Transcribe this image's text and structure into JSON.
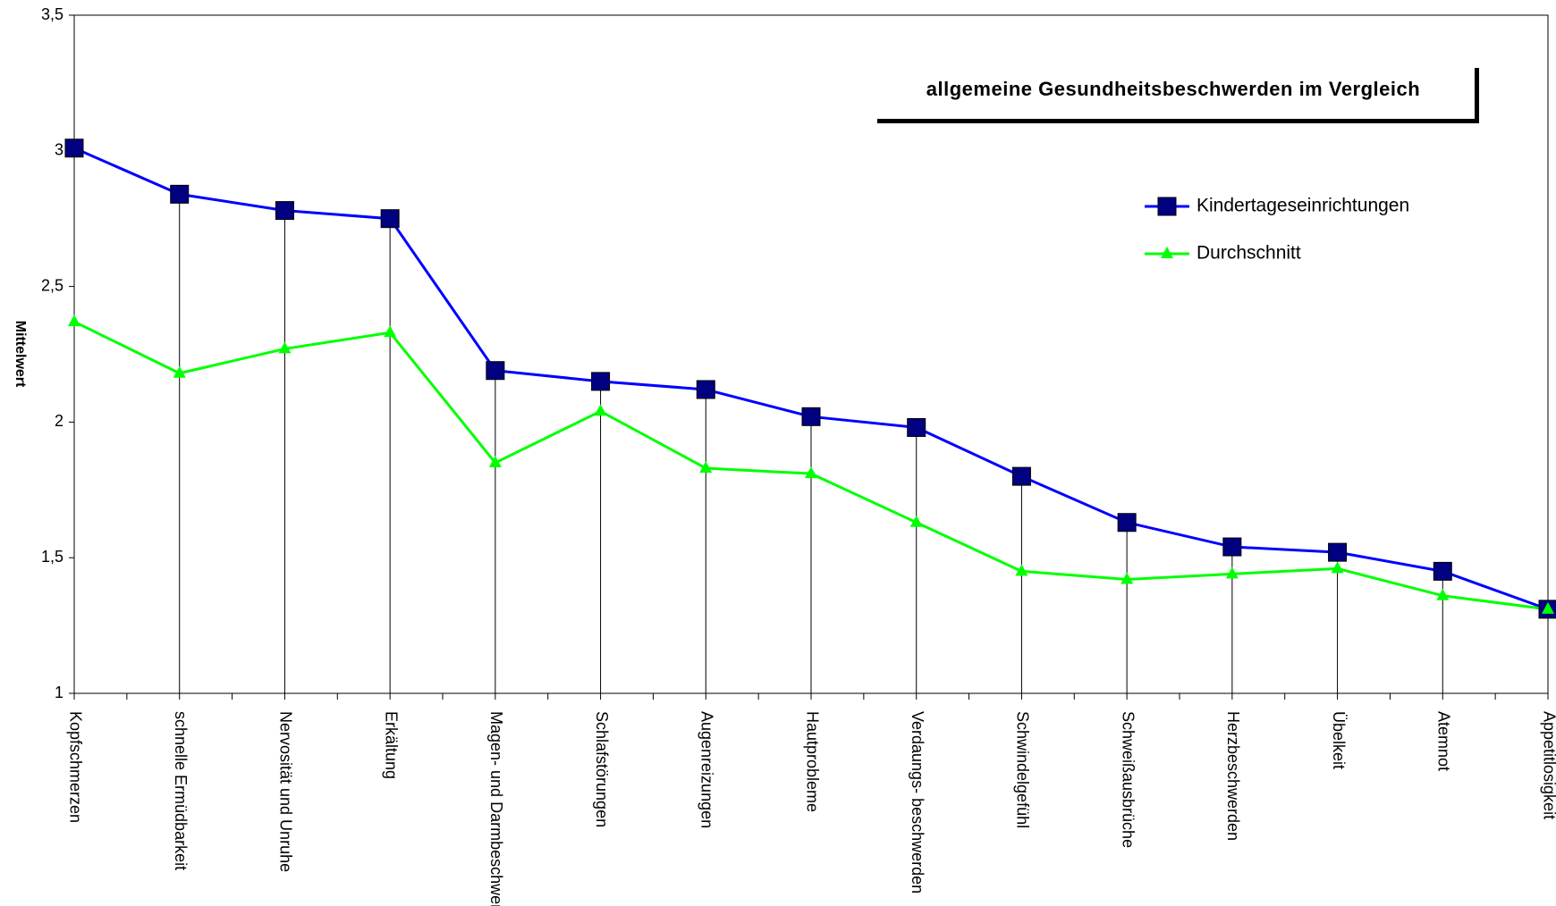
{
  "chart_data": {
    "type": "line",
    "title": "allgemeine Gesundheitsbeschwerden im Vergleich",
    "y_label": "Mittelwert",
    "categories": [
      "Kopfschmerzen",
      "schnelle Ermüdbarkeit",
      "Nervosität und Unruhe",
      "Erkältung",
      "Magen- und Darmbeschwerden",
      "Schlafstörungen",
      "Augenreizungen",
      "Hautprobleme",
      "Verdaungs- beschwerden",
      "Schwindelgefühl",
      "Schweißausbrüche",
      "Herzbeschwerden",
      "Übelkeit",
      "Atemnot",
      "Appetitlosigkeit"
    ],
    "series": [
      {
        "name": "Kindertageseinrichtungen",
        "color": "#0000ff",
        "marker_color": "#000080",
        "marker": "square",
        "values": [
          3.01,
          2.84,
          2.78,
          2.75,
          2.19,
          2.15,
          2.12,
          2.02,
          1.98,
          1.8,
          1.63,
          1.54,
          1.52,
          1.45,
          1.31
        ]
      },
      {
        "name": "Durchschnitt",
        "color": "#00ff00",
        "marker_color": "#00ff00",
        "marker": "triangle",
        "values": [
          2.37,
          2.18,
          2.27,
          2.33,
          1.85,
          2.04,
          1.83,
          1.81,
          1.63,
          1.45,
          1.42,
          1.44,
          1.46,
          1.36,
          1.31
        ]
      }
    ],
    "ylim": [
      1,
      3.5
    ],
    "yticks": [
      1,
      {
        "value": 1.5,
        "label": "1,5"
      },
      2,
      {
        "value": 2.5,
        "label": "2,5"
      },
      3,
      {
        "value": 3.5,
        "label": "3,5"
      }
    ],
    "drop_lines": true
  }
}
